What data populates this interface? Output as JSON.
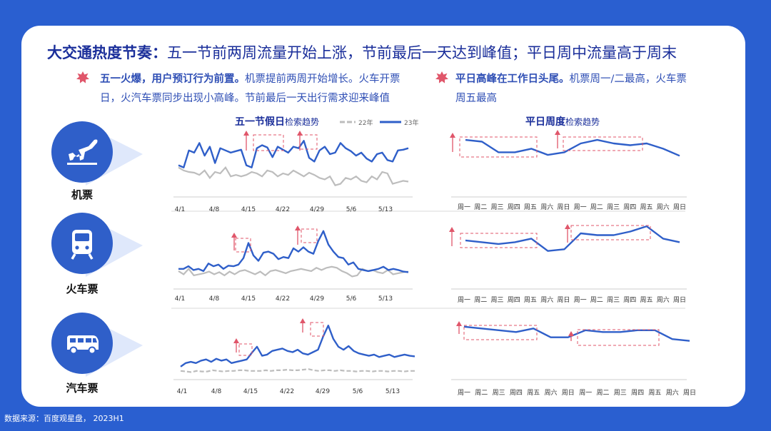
{
  "headline": {
    "bold": "大交通热度节奏：",
    "rest": "五一节前两周流量开始上涨，节前最后一天达到峰值；平日周中流量高于周末"
  },
  "left_point": {
    "bold": "五一火爆，用户预订行为前置。",
    "line1_rest": "机票提前两周开始增长。火车开票",
    "line2": "日，火汽车票同步出现小高峰。节前最后一天出行需求迎来峰值"
  },
  "right_point": {
    "bold": "平日高峰在工作日头尾。",
    "line1_rest": "机票周一/二最高，火车票",
    "line2": "周五最高"
  },
  "left_chart_title": {
    "bold": "五一节假日",
    "rest": "检索趋势"
  },
  "right_chart_title": {
    "bold": "平日周度",
    "rest": "检索趋势"
  },
  "legend": {
    "y22": "22年",
    "y23": "23年"
  },
  "transports": [
    {
      "label": "机票",
      "icon": "airplane-icon"
    },
    {
      "label": "火车票",
      "icon": "train-icon"
    },
    {
      "label": "汽车票",
      "icon": "bus-icon"
    }
  ],
  "source": "数据来源：百度观星盘， 2023H1",
  "colors": {
    "y23": "#2f5fc9",
    "y22": "#bdbdbd",
    "highlight": "#e0566a",
    "accent": "#1a2e9a"
  },
  "chart_data": [
    {
      "type": "line",
      "panel": "机票-五一",
      "x_ticks": [
        "4/1",
        "4/8",
        "4/15",
        "4/22",
        "4/29",
        "5/6",
        "5/13"
      ],
      "series": [
        {
          "name": "23年",
          "values": [
            55,
            52,
            75,
            72,
            85,
            68,
            80,
            58,
            78,
            75,
            72,
            74,
            76,
            55,
            52,
            78,
            82,
            79,
            66,
            80,
            76,
            72,
            80,
            78,
            88,
            65,
            60,
            75,
            80,
            70,
            72,
            85,
            78,
            74,
            68,
            72,
            64,
            60,
            70,
            72,
            62,
            60,
            75,
            76,
            78
          ]
        },
        {
          "name": "22年",
          "values": [
            52,
            48,
            46,
            45,
            42,
            48,
            38,
            46,
            44,
            52,
            40,
            42,
            40,
            42,
            46,
            44,
            40,
            48,
            46,
            40,
            44,
            42,
            48,
            44,
            40,
            45,
            42,
            38,
            36,
            40,
            28,
            30,
            38,
            36,
            40,
            34,
            32,
            40,
            36,
            46,
            44,
            30,
            32,
            34,
            33
          ]
        }
      ]
    },
    {
      "type": "line",
      "panel": "火车票-五一",
      "x_ticks": [
        "4/1",
        "4/8",
        "4/15",
        "4/22",
        "4/29",
        "5/6",
        "5/13"
      ],
      "series": [
        {
          "name": "23年",
          "values": [
            40,
            40,
            45,
            38,
            40,
            36,
            50,
            45,
            48,
            40,
            46,
            45,
            48,
            60,
            88,
            65,
            55,
            70,
            72,
            68,
            58,
            62,
            60,
            78,
            72,
            80,
            72,
            68,
            92,
            110,
            85,
            72,
            62,
            60,
            48,
            52,
            40,
            38,
            36,
            38,
            40,
            44,
            38,
            40,
            38,
            35,
            34
          ]
        },
        {
          "name": "22年",
          "values": [
            36,
            30,
            40,
            28,
            30,
            32,
            35,
            30,
            34,
            28,
            35,
            30,
            36,
            38,
            34,
            30,
            35,
            28,
            36,
            38,
            35,
            32,
            36,
            38,
            40,
            38,
            36,
            42,
            38,
            42,
            44,
            42,
            36,
            32,
            26,
            28,
            40,
            36,
            38,
            34,
            32,
            38,
            30,
            32,
            34,
            35
          ]
        }
      ]
    },
    {
      "type": "line",
      "panel": "汽车票-五一",
      "x_ticks": [
        "4/1",
        "4/8",
        "4/15",
        "4/22",
        "4/29",
        "5/6",
        "5/13"
      ],
      "series": [
        {
          "name": "23年",
          "values": [
            12,
            18,
            20,
            18,
            22,
            24,
            20,
            25,
            22,
            24,
            18,
            20,
            22,
            24,
            35,
            45,
            30,
            32,
            38,
            40,
            42,
            38,
            36,
            40,
            34,
            32,
            36,
            40,
            62,
            80,
            58,
            45,
            40,
            46,
            38,
            34,
            32,
            30,
            32,
            28,
            30,
            32,
            28,
            30,
            32,
            30,
            29
          ]
        },
        {
          "name": "22年",
          "values": [
            5,
            4,
            3,
            5,
            4,
            4,
            6,
            5,
            4,
            5,
            5,
            6,
            6,
            5,
            5,
            5,
            6,
            5,
            6,
            6,
            7,
            6,
            6,
            7,
            8,
            6,
            5,
            6,
            6,
            5,
            6,
            5,
            5,
            4,
            5,
            5,
            4,
            5,
            5,
            4,
            5,
            5,
            4,
            5,
            5
          ]
        }
      ]
    },
    {
      "type": "line",
      "panel": "机票-平日",
      "x_ticks": [
        "周一",
        "周二",
        "周三",
        "周四",
        "周五",
        "周六",
        "周日",
        "周一",
        "周二",
        "周三",
        "周四",
        "周五",
        "周六",
        "周日"
      ],
      "values": [
        82,
        80,
        68,
        68,
        72,
        65,
        68,
        78,
        82,
        78,
        76,
        78,
        72,
        64
      ]
    },
    {
      "type": "line",
      "panel": "火车票-平日",
      "x_ticks": [
        "周一",
        "周二",
        "周三",
        "周四",
        "周五",
        "周六",
        "周日",
        "周一",
        "周二",
        "周三",
        "周四",
        "周五",
        "周六",
        "周日"
      ],
      "values": [
        70,
        68,
        66,
        68,
        72,
        58,
        60,
        78,
        76,
        76,
        80,
        86,
        72,
        68
      ]
    },
    {
      "type": "line",
      "panel": "汽车票-平日",
      "x_ticks": [
        "周一",
        "周二",
        "周三",
        "周四",
        "周五",
        "周六",
        "周日",
        "周一",
        "周二",
        "周三",
        "周四",
        "周五",
        "周六",
        "周日"
      ],
      "values": [
        74,
        72,
        70,
        68,
        72,
        62,
        62,
        70,
        68,
        68,
        70,
        70,
        60,
        58
      ]
    }
  ]
}
